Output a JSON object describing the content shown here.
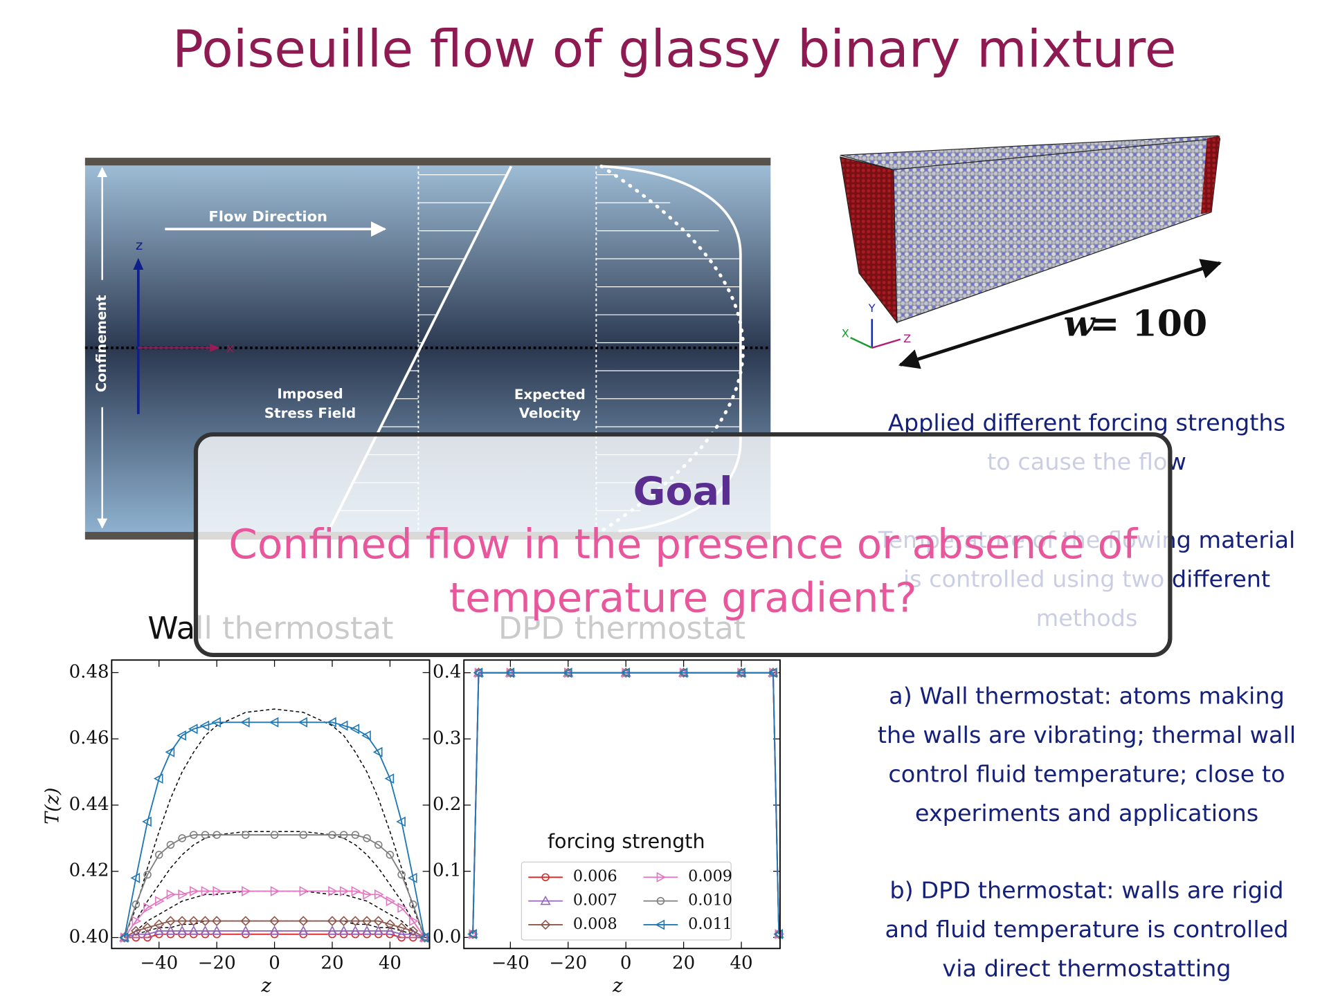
{
  "title": "Poiseuille flow of glassy binary mixture",
  "diagram": {
    "flow_direction": "Flow Direction",
    "z_axis": "z",
    "x_axis": "x",
    "confinement": "Confinement",
    "stress_label": [
      "Imposed",
      "Stress Field"
    ],
    "velocity_label": [
      "Expected",
      "Velocity"
    ]
  },
  "box": {
    "width_symbol": "w",
    "width_value": "= 100",
    "axes": [
      "Y",
      "X",
      "Z"
    ]
  },
  "notes": [
    [
      "Applied different forcing strengths",
      "to cause the flow"
    ],
    [
      "Temperature of the flowing material",
      "is controlled using two different",
      "methods"
    ],
    [
      "a) Wall thermostat: atoms making",
      "the walls are vibrating; thermal wall",
      "control fluid temperature; close to",
      "experiments and applications"
    ],
    [
      "b) DPD thermostat: walls are rigid",
      "and fluid temperature is controlled",
      "via direct thermostatting"
    ]
  ],
  "goal": {
    "heading": "Goal",
    "question": [
      "Confined flow in the presence or absence of",
      "temperature gradient?"
    ]
  },
  "chart_data": [
    {
      "type": "line",
      "title": "Wall thermostat",
      "xlabel": "z",
      "ylabel": "T(z)",
      "x": [
        -52,
        -48,
        -44,
        -40,
        -36,
        -32,
        -28,
        -24,
        -20,
        -10,
        0,
        10,
        20,
        24,
        28,
        32,
        36,
        40,
        44,
        48,
        52
      ],
      "xlim": [
        -56.4,
        53.7
      ],
      "ylim": [
        0.3967,
        0.4838
      ],
      "xticks": [
        {
          "value": -40,
          "label": "−40"
        },
        {
          "value": -20,
          "label": "−20"
        },
        0,
        20,
        40
      ],
      "yticks": [
        {
          "value": 0.4,
          "label": "0.40"
        },
        {
          "value": 0.42,
          "label": "0.42"
        },
        {
          "value": 0.44,
          "label": "0.44"
        },
        {
          "value": 0.46,
          "label": "0.46"
        },
        {
          "value": 0.48,
          "label": "0.48"
        }
      ],
      "series": [
        {
          "name": "0.006",
          "color": "#d62728",
          "marker": "o",
          "values": [
            0.4,
            0.4,
            0.4,
            0.401,
            0.401,
            0.401,
            0.401,
            0.401,
            0.401,
            0.401,
            0.401,
            0.401,
            0.401,
            0.401,
            0.401,
            0.401,
            0.401,
            0.401,
            0.4,
            0.4,
            0.4
          ]
        },
        {
          "name": "0.007",
          "color": "#9467bd",
          "marker": "^",
          "values": [
            0.4,
            0.401,
            0.401,
            0.402,
            0.402,
            0.402,
            0.402,
            0.402,
            0.402,
            0.402,
            0.402,
            0.402,
            0.402,
            0.402,
            0.402,
            0.402,
            0.402,
            0.402,
            0.401,
            0.401,
            0.4
          ]
        },
        {
          "name": "0.008",
          "color": "#8c564b",
          "marker": "D",
          "values": [
            0.4,
            0.402,
            0.403,
            0.404,
            0.405,
            0.405,
            0.405,
            0.405,
            0.405,
            0.405,
            0.405,
            0.405,
            0.405,
            0.405,
            0.405,
            0.405,
            0.405,
            0.404,
            0.403,
            0.402,
            0.4
          ]
        },
        {
          "name": "0.009",
          "color": "#e377c2",
          "marker": ">",
          "values": [
            0.4,
            0.405,
            0.409,
            0.411,
            0.413,
            0.413,
            0.414,
            0.414,
            0.414,
            0.414,
            0.414,
            0.414,
            0.414,
            0.414,
            0.414,
            0.413,
            0.413,
            0.411,
            0.409,
            0.405,
            0.4
          ]
        },
        {
          "name": "0.010",
          "color": "#7f7f7f",
          "marker": "o",
          "values": [
            0.4,
            0.41,
            0.419,
            0.425,
            0.428,
            0.43,
            0.431,
            0.431,
            0.431,
            0.431,
            0.431,
            0.431,
            0.431,
            0.431,
            0.431,
            0.43,
            0.428,
            0.425,
            0.419,
            0.41,
            0.4
          ]
        },
        {
          "name": "0.011",
          "color": "#1f77b4",
          "marker": "<",
          "values": [
            0.4,
            0.418,
            0.435,
            0.448,
            0.456,
            0.461,
            0.463,
            0.464,
            0.465,
            0.465,
            0.465,
            0.465,
            0.465,
            0.464,
            0.463,
            0.461,
            0.456,
            0.448,
            0.435,
            0.418,
            0.4
          ]
        }
      ],
      "fits": [
        {
          "color": "#000000",
          "values": [
            0.4,
            0.401,
            0.402,
            0.403,
            0.403,
            0.404,
            0.404,
            0.405,
            0.405,
            0.405,
            0.405,
            0.405,
            0.405,
            0.405,
            0.404,
            0.404,
            0.403,
            0.403,
            0.402,
            0.401,
            0.4
          ]
        },
        {
          "color": "#000000",
          "values": [
            0.4,
            0.402,
            0.405,
            0.407,
            0.409,
            0.411,
            0.412,
            0.413,
            0.413,
            0.414,
            0.414,
            0.414,
            0.413,
            0.413,
            0.412,
            0.411,
            0.409,
            0.407,
            0.405,
            0.402,
            0.4
          ]
        },
        {
          "color": "#000000",
          "values": [
            0.4,
            0.405,
            0.411,
            0.416,
            0.421,
            0.425,
            0.428,
            0.43,
            0.431,
            0.432,
            0.432,
            0.432,
            0.431,
            0.43,
            0.428,
            0.425,
            0.421,
            0.416,
            0.411,
            0.405,
            0.4
          ]
        },
        {
          "color": "#000000",
          "values": [
            0.4,
            0.409,
            0.421,
            0.432,
            0.442,
            0.45,
            0.456,
            0.461,
            0.464,
            0.468,
            0.469,
            0.468,
            0.464,
            0.461,
            0.456,
            0.45,
            0.442,
            0.432,
            0.421,
            0.409,
            0.4
          ]
        }
      ]
    },
    {
      "type": "line",
      "title": "DPD thermostat",
      "xlabel": "z",
      "x": [
        -53,
        -51,
        -40,
        -20,
        0,
        20,
        40,
        51,
        53
      ],
      "xlim": [
        -56.1,
        53.4
      ],
      "ylim": [
        -0.0167,
        0.4192
      ],
      "xticks": [
        {
          "value": -40,
          "label": "−40"
        },
        {
          "value": -20,
          "label": "−20"
        },
        0,
        20,
        40
      ],
      "yticks": [
        {
          "value": 0,
          "label": "0.0"
        },
        0.1,
        0.2,
        0.3,
        0.4
      ],
      "legend": {
        "title": "forcing strength",
        "loc": "lower center",
        "columns": 2
      },
      "series": [
        {
          "name": "0.006",
          "color": "#d62728",
          "marker": "o",
          "values": [
            0.005,
            0.4,
            0.4,
            0.4,
            0.4,
            0.4,
            0.4,
            0.4,
            0.005
          ]
        },
        {
          "name": "0.007",
          "color": "#9467bd",
          "marker": "^",
          "values": [
            0.005,
            0.4,
            0.4,
            0.4,
            0.4,
            0.4,
            0.4,
            0.4,
            0.005
          ]
        },
        {
          "name": "0.008",
          "color": "#8c564b",
          "marker": "D",
          "values": [
            0.005,
            0.4,
            0.4,
            0.4,
            0.4,
            0.4,
            0.4,
            0.4,
            0.005
          ]
        },
        {
          "name": "0.009",
          "color": "#e377c2",
          "marker": ">",
          "values": [
            0.005,
            0.4,
            0.4,
            0.4,
            0.4,
            0.4,
            0.4,
            0.4,
            0.005
          ]
        },
        {
          "name": "0.010",
          "color": "#7f7f7f",
          "marker": "o",
          "values": [
            0.005,
            0.4,
            0.4,
            0.4,
            0.4,
            0.4,
            0.4,
            0.4,
            0.005
          ]
        },
        {
          "name": "0.011",
          "color": "#1f77b4",
          "marker": "<",
          "values": [
            0.005,
            0.4,
            0.4,
            0.4,
            0.4,
            0.4,
            0.4,
            0.4,
            0.005
          ]
        }
      ]
    }
  ]
}
